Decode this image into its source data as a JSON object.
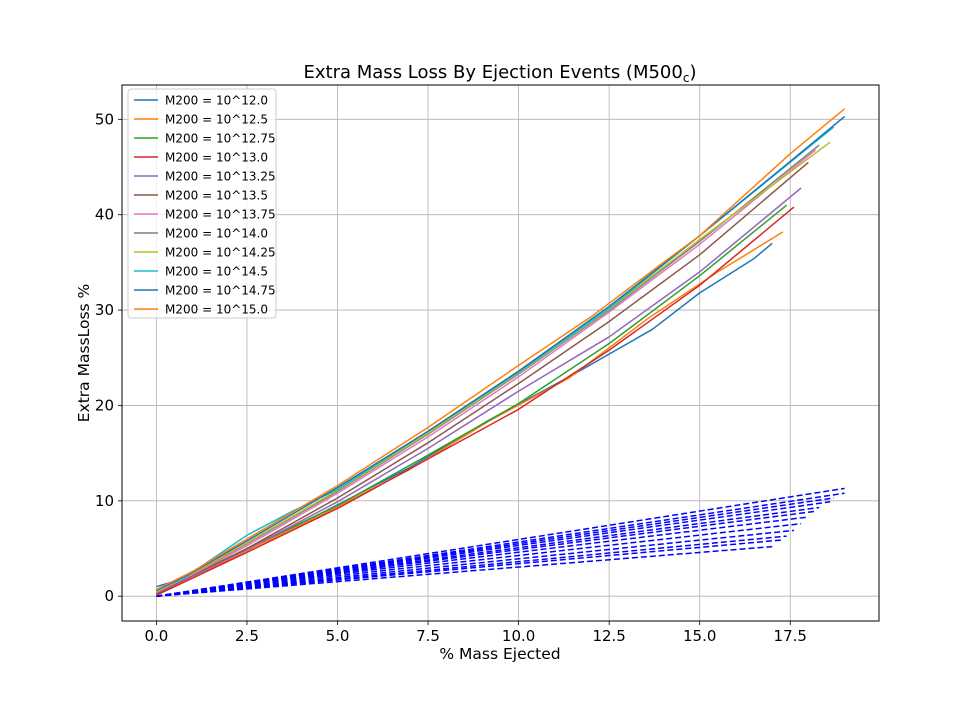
{
  "chart_data": {
    "type": "line",
    "title": "Extra Mass Loss By Ejection Events (M500",
    "title_subscript": "c",
    "title_close": ")",
    "xlabel": "% Mass Ejected",
    "ylabel": "Extra MassLoss %",
    "xlim": [
      -0.95,
      19.95
    ],
    "ylim": [
      -2.6,
      53.6
    ],
    "xticks": [
      0.0,
      2.5,
      5.0,
      7.5,
      10.0,
      12.5,
      15.0,
      17.5
    ],
    "xtick_labels": [
      "0.0",
      "2.5",
      "5.0",
      "7.5",
      "10.0",
      "12.5",
      "15.0",
      "17.5"
    ],
    "yticks": [
      0,
      10,
      20,
      30,
      40,
      50
    ],
    "ytick_labels": [
      "0",
      "10",
      "20",
      "30",
      "40",
      "50"
    ],
    "grid": true,
    "legend_position": "upper-left",
    "series": [
      {
        "name": "M200 = 10^12.0",
        "color": "#1f77b4",
        "style": "solid",
        "x": [
          0.0,
          0.7,
          2.5,
          4.5,
          7.0,
          9.2,
          11.4,
          12.6,
          13.7,
          15.0,
          16.5,
          17.0
        ],
        "y": [
          1.0,
          1.8,
          4.8,
          8.6,
          13.5,
          18.5,
          23.0,
          25.6,
          28.0,
          31.8,
          35.4,
          37.0
        ]
      },
      {
        "name": "M200 = 10^12.5",
        "color": "#ff7f0e",
        "style": "solid",
        "x": [
          0.0,
          1.0,
          2.5,
          4.5,
          7.0,
          9.2,
          11.4,
          13.6,
          15.5,
          17.3
        ],
        "y": [
          0.2,
          1.9,
          4.8,
          8.4,
          13.3,
          18.4,
          22.9,
          29.2,
          34.0,
          38.2
        ]
      },
      {
        "name": "M200 = 10^12.75",
        "color": "#2ca02c",
        "style": "solid",
        "x": [
          0.0,
          1.0,
          2.5,
          5.0,
          7.5,
          10.0,
          12.5,
          15.0,
          17.4
        ],
        "y": [
          0.2,
          2.2,
          5.0,
          9.5,
          14.8,
          20.2,
          26.5,
          33.6,
          41.0
        ]
      },
      {
        "name": "M200 = 10^13.0",
        "color": "#d62728",
        "style": "solid",
        "x": [
          0.0,
          1.0,
          2.5,
          5.0,
          7.5,
          10.0,
          12.5,
          15.0,
          17.6
        ],
        "y": [
          0.1,
          1.9,
          4.6,
          9.2,
          14.4,
          19.6,
          25.8,
          32.6,
          40.8
        ]
      },
      {
        "name": "M200 = 10^13.25",
        "color": "#9467bd",
        "style": "solid",
        "x": [
          0.0,
          1.0,
          2.5,
          5.0,
          7.5,
          10.0,
          12.5,
          15.0,
          17.8
        ],
        "y": [
          0.3,
          2.1,
          4.9,
          9.9,
          15.5,
          21.5,
          27.2,
          34.0,
          42.8
        ]
      },
      {
        "name": "M200 = 10^13.5",
        "color": "#8c564b",
        "style": "solid",
        "x": [
          0.0,
          1.0,
          2.5,
          5.0,
          7.5,
          10.0,
          12.5,
          15.0,
          18.0
        ],
        "y": [
          0.3,
          2.2,
          5.0,
          10.3,
          16.1,
          22.3,
          28.8,
          35.8,
          45.5
        ]
      },
      {
        "name": "M200 = 10^13.75",
        "color": "#e377c2",
        "style": "solid",
        "x": [
          0.0,
          1.0,
          2.5,
          5.0,
          7.5,
          10.0,
          12.5,
          15.0,
          18.2
        ],
        "y": [
          0.4,
          2.3,
          5.3,
          10.8,
          16.7,
          23.0,
          29.8,
          36.9,
          46.8
        ]
      },
      {
        "name": "M200 = 10^14.0",
        "color": "#7f7f7f",
        "style": "solid",
        "x": [
          0.0,
          1.0,
          2.5,
          5.0,
          7.5,
          10.0,
          12.5,
          15.0,
          18.3
        ],
        "y": [
          0.5,
          2.4,
          5.5,
          11.0,
          17.0,
          23.3,
          30.0,
          37.2,
          47.3
        ]
      },
      {
        "name": "M200 = 10^14.25",
        "color": "#bcbd22",
        "style": "solid",
        "x": [
          0.0,
          1.0,
          2.5,
          5.0,
          7.5,
          10.0,
          12.5,
          15.0,
          18.6
        ],
        "y": [
          0.5,
          2.4,
          5.6,
          11.1,
          17.1,
          23.4,
          30.1,
          37.4,
          47.6
        ]
      },
      {
        "name": "M200 = 10^14.5",
        "color": "#17becf",
        "style": "solid",
        "x": [
          0.0,
          0.8,
          2.5,
          3.8,
          5.0,
          7.5,
          10.0,
          12.5,
          15.0,
          18.7
        ],
        "y": [
          0.6,
          2.0,
          6.4,
          9.0,
          11.2,
          17.3,
          23.5,
          30.2,
          37.8,
          49.2
        ]
      },
      {
        "name": "M200 = 10^14.75",
        "color": "#1f77b4",
        "style": "solid",
        "x": [
          0.0,
          1.0,
          2.5,
          5.0,
          7.5,
          10.0,
          12.5,
          15.0,
          17.5,
          19.0
        ],
        "y": [
          0.6,
          2.5,
          5.8,
          11.4,
          17.3,
          23.6,
          30.4,
          37.8,
          45.6,
          50.3
        ]
      },
      {
        "name": "M200 = 10^15.0",
        "color": "#ff7f0e",
        "style": "solid",
        "x": [
          0.0,
          1.0,
          2.5,
          5.0,
          7.5,
          10.0,
          12.0,
          14.0,
          15.0,
          17.5,
          19.0
        ],
        "y": [
          0.7,
          2.6,
          6.0,
          11.6,
          17.7,
          24.2,
          29.3,
          35.0,
          37.8,
          46.4,
          51.1
        ]
      }
    ],
    "dashed_series": {
      "color": "#0000ff",
      "style": "dashed",
      "lines": [
        {
          "x": [
            0.0,
            17.0
          ],
          "y": [
            0.0,
            5.2
          ]
        },
        {
          "x": [
            0.0,
            17.3
          ],
          "y": [
            0.0,
            5.9
          ]
        },
        {
          "x": [
            0.0,
            17.4
          ],
          "y": [
            0.0,
            6.3
          ]
        },
        {
          "x": [
            0.0,
            17.6
          ],
          "y": [
            0.0,
            6.9
          ]
        },
        {
          "x": [
            0.0,
            17.8
          ],
          "y": [
            0.0,
            7.6
          ]
        },
        {
          "x": [
            0.0,
            18.0
          ],
          "y": [
            0.0,
            8.3
          ]
        },
        {
          "x": [
            0.0,
            18.2
          ],
          "y": [
            0.0,
            8.9
          ]
        },
        {
          "x": [
            0.0,
            18.3
          ],
          "y": [
            0.0,
            9.3
          ]
        },
        {
          "x": [
            0.0,
            18.6
          ],
          "y": [
            0.0,
            9.9
          ]
        },
        {
          "x": [
            0.0,
            18.7
          ],
          "y": [
            0.0,
            10.3
          ]
        },
        {
          "x": [
            0.0,
            19.0
          ],
          "y": [
            0.0,
            10.8
          ]
        },
        {
          "x": [
            0.0,
            19.0
          ],
          "y": [
            0.0,
            11.3
          ]
        }
      ]
    }
  }
}
